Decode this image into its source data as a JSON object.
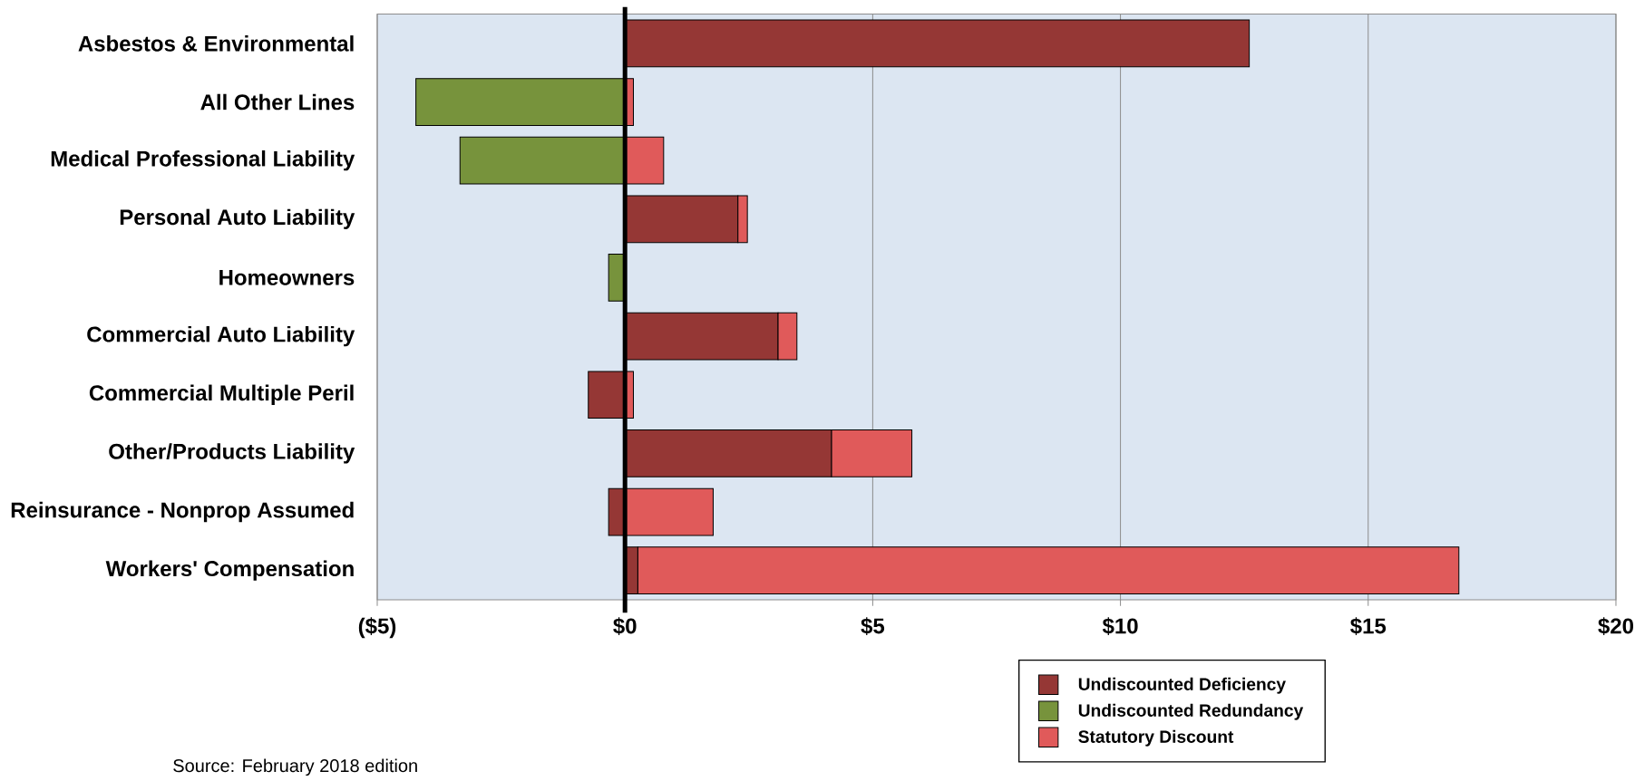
{
  "chart_data": {
    "type": "bar",
    "orientation": "horizontal",
    "stacked": true,
    "categories": [
      "Asbestos & Environmental",
      "All Other Lines",
      "Medical Professional Liability",
      "Personal Auto Liability",
      "Homeowners",
      "Commercial Auto Liability",
      "Commercial Multiple Peril",
      "Other/Products Liability",
      "Reinsurance - Nonprop Assumed",
      "Workers' Compensation"
    ],
    "series": [
      {
        "name": "Undiscounted Deficiency",
        "color": "#953735",
        "values": [
          12.6,
          null,
          null,
          2.28,
          null,
          3.09,
          -0.74,
          4.17,
          -0.33,
          0.26
        ]
      },
      {
        "name": "Undiscounted Redundancy",
        "color": "#77933c",
        "values": [
          null,
          -4.22,
          -3.33,
          null,
          -0.33,
          null,
          null,
          null,
          null,
          null
        ]
      },
      {
        "name": "Statutory Discount",
        "color": "#e05a5a",
        "values": [
          null,
          0.17,
          0.78,
          0.19,
          null,
          0.38,
          0.17,
          1.62,
          1.78,
          16.57
        ]
      }
    ],
    "xlim": [
      -5,
      20
    ],
    "xticks": [
      {
        "value": -5,
        "label": "($5)"
      },
      {
        "value": 0,
        "label": "$0"
      },
      {
        "value": 5,
        "label": "$5"
      },
      {
        "value": 10,
        "label": "$10"
      },
      {
        "value": 15,
        "label": "$15"
      },
      {
        "value": 20,
        "label": "$20"
      }
    ],
    "grid": "x",
    "legend": "bottom right",
    "ref_lines": [
      {
        "axis": "x",
        "value": 0,
        "color": "#000000"
      }
    ],
    "annotations": [
      "Source: February 2018 edition"
    ]
  }
}
